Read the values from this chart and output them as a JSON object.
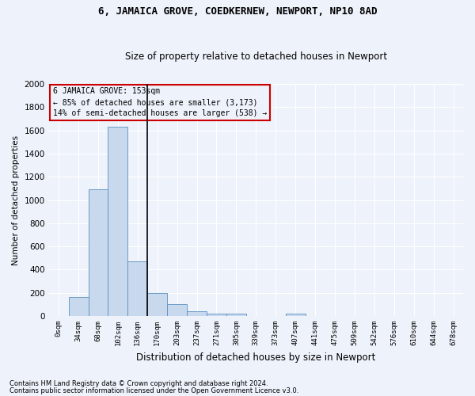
{
  "title": "6, JAMAICA GROVE, COEDKERNEW, NEWPORT, NP10 8AD",
  "subtitle": "Size of property relative to detached houses in Newport",
  "xlabel": "Distribution of detached houses by size in Newport",
  "ylabel": "Number of detached properties",
  "footnote1": "Contains HM Land Registry data © Crown copyright and database right 2024.",
  "footnote2": "Contains public sector information licensed under the Open Government Licence v3.0.",
  "annotation_line1": "6 JAMAICA GROVE: 153sqm",
  "annotation_line2": "← 85% of detached houses are smaller (3,173)",
  "annotation_line3": "14% of semi-detached houses are larger (538) →",
  "bar_color": "#c8d9ed",
  "bar_edge_color": "#5a8fc0",
  "vline_color": "#000000",
  "annotation_box_color": "#cc0000",
  "background_color": "#eef2fb",
  "grid_color": "#ffffff",
  "categories": [
    "0sqm",
    "34sqm",
    "68sqm",
    "102sqm",
    "136sqm",
    "170sqm",
    "203sqm",
    "237sqm",
    "271sqm",
    "305sqm",
    "339sqm",
    "373sqm",
    "407sqm",
    "441sqm",
    "475sqm",
    "509sqm",
    "542sqm",
    "576sqm",
    "610sqm",
    "644sqm",
    "678sqm"
  ],
  "values": [
    0,
    165,
    1090,
    1630,
    470,
    200,
    103,
    43,
    22,
    18,
    0,
    0,
    18,
    0,
    0,
    0,
    0,
    0,
    0,
    0,
    0
  ],
  "ylim": [
    0,
    2000
  ],
  "yticks": [
    0,
    200,
    400,
    600,
    800,
    1000,
    1200,
    1400,
    1600,
    1800,
    2000
  ],
  "vline_bin": 4,
  "title_fontsize": 9,
  "subtitle_fontsize": 8.5
}
